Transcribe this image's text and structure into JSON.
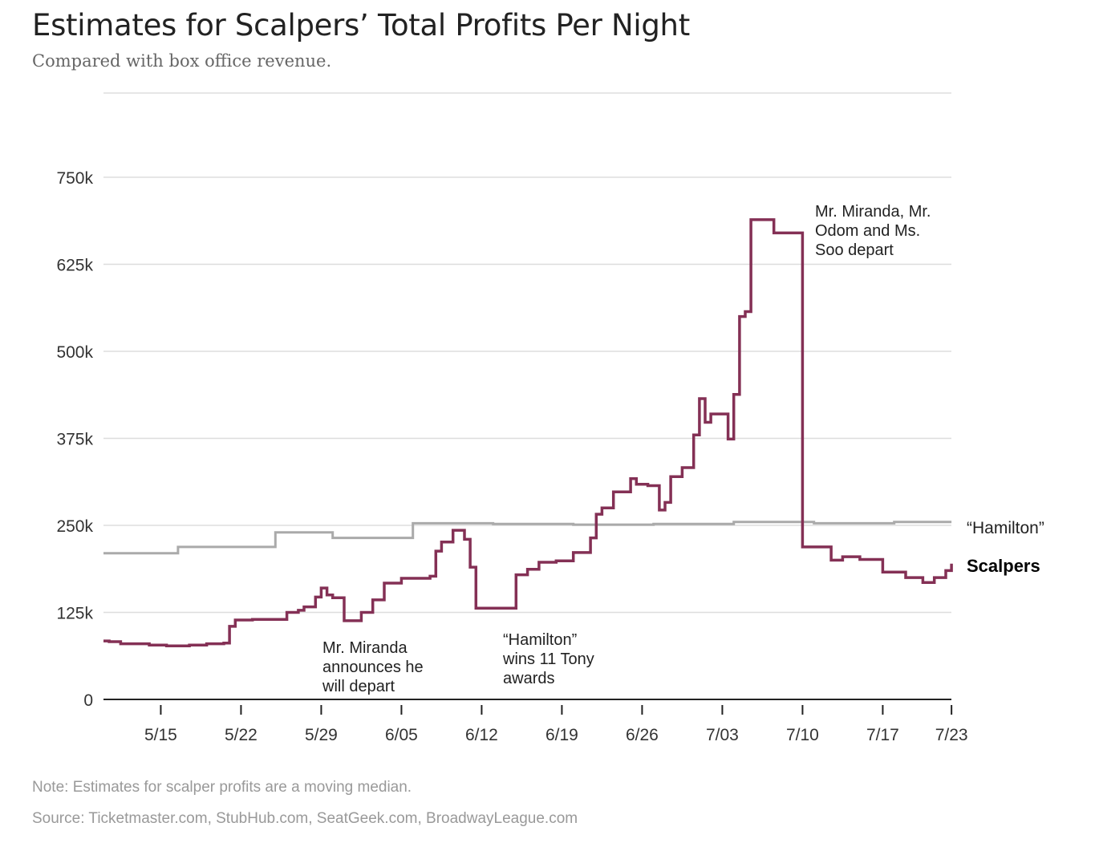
{
  "title": "Estimates for Scalpers’ Total Profits Per Night",
  "subtitle": "Compared with box office revenue.",
  "note": "Note: Estimates for scalper profits are a moving median.",
  "source": "Source: Ticketmaster.com, StubHub.com, SeatGeek.com, BroadwayLeague.com",
  "colors": {
    "scalpers": "#843055",
    "hamilton": "#aaaaaa",
    "grid": "#dddddd",
    "axis": "#222222"
  },
  "chart_data": {
    "type": "line",
    "title": "Estimates for Scalpers’ Total Profits Per Night",
    "subtitle": "Compared with box office revenue.",
    "xlabel": "",
    "ylabel": "",
    "x_range": [
      "2016-05-10",
      "2016-07-23"
    ],
    "ylim": [
      0,
      875000
    ],
    "y_ticks": [
      0,
      125000,
      250000,
      375000,
      500000,
      625000,
      750000
    ],
    "y_tick_labels": [
      "0",
      "125k",
      "250k",
      "375k",
      "500k",
      "625k",
      "750k"
    ],
    "x_ticks": [
      "2016-05-15",
      "2016-05-22",
      "2016-05-29",
      "2016-06-05",
      "2016-06-12",
      "2016-06-19",
      "2016-06-26",
      "2016-07-03",
      "2016-07-10",
      "2016-07-17",
      "2016-07-23"
    ],
    "x_tick_labels": [
      "5/15",
      "5/22",
      "5/29",
      "6/05",
      "6/12",
      "6/19",
      "6/26",
      "7/03",
      "7/10",
      "7/17",
      "7/23"
    ],
    "grid": true,
    "legend": "direct labels at right end of lines",
    "series": [
      {
        "name": "Scalpers",
        "key": "scalpers",
        "step": true,
        "points": [
          [
            "2016-05-10",
            84000
          ],
          [
            "2016-05-10.5",
            83000
          ],
          [
            "2016-05-11.5",
            80000
          ],
          [
            "2016-05-14",
            78000
          ],
          [
            "2016-05-15.5",
            77000
          ],
          [
            "2016-05-17.5",
            78000
          ],
          [
            "2016-05-19",
            80000
          ],
          [
            "2016-05-20.5",
            81000
          ],
          [
            "2016-05-21",
            105000
          ],
          [
            "2016-05-21.5",
            114000
          ],
          [
            "2016-05-23",
            115000
          ],
          [
            "2016-05-26",
            125000
          ],
          [
            "2016-05-27",
            128000
          ],
          [
            "2016-05-27.5",
            133000
          ],
          [
            "2016-05-28.5",
            147000
          ],
          [
            "2016-05-29",
            160000
          ],
          [
            "2016-05-29.5",
            150000
          ],
          [
            "2016-05-30",
            146000
          ],
          [
            "2016-05-31",
            113000
          ],
          [
            "2016-06-01.5",
            125000
          ],
          [
            "2016-06-02.5",
            143000
          ],
          [
            "2016-06-03.5",
            167000
          ],
          [
            "2016-06-05",
            174000
          ],
          [
            "2016-06-07.5",
            177000
          ],
          [
            "2016-06-08",
            213000
          ],
          [
            "2016-06-08.5",
            226000
          ],
          [
            "2016-06-09.5",
            243000
          ],
          [
            "2016-06-10.5",
            230000
          ],
          [
            "2016-06-11",
            190000
          ],
          [
            "2016-06-11.5",
            131000
          ],
          [
            "2016-06-15",
            179000
          ],
          [
            "2016-06-16",
            187000
          ],
          [
            "2016-06-17",
            197000
          ],
          [
            "2016-06-18.5",
            199000
          ],
          [
            "2016-06-20",
            211000
          ],
          [
            "2016-06-21.5",
            232000
          ],
          [
            "2016-06-22",
            266000
          ],
          [
            "2016-06-22.5",
            275000
          ],
          [
            "2016-06-23.5",
            298000
          ],
          [
            "2016-06-25",
            317000
          ],
          [
            "2016-06-25.5",
            309000
          ],
          [
            "2016-06-26.5",
            307000
          ],
          [
            "2016-06-27.5",
            272000
          ],
          [
            "2016-06-28",
            283000
          ],
          [
            "2016-06-28.5",
            320000
          ],
          [
            "2016-06-29.5",
            333000
          ],
          [
            "2016-06-30.5",
            380000
          ],
          [
            "2016-06-31",
            432000
          ],
          [
            "2016-06-31.5",
            398000
          ],
          [
            "2016-07-02",
            410000
          ],
          [
            "2016-07-03.5",
            374000
          ],
          [
            "2016-07-04",
            438000
          ],
          [
            "2016-07-04.5",
            550000
          ],
          [
            "2016-07-05",
            557000
          ],
          [
            "2016-07-05.5",
            689000
          ],
          [
            "2016-07-07.5",
            670000
          ],
          [
            "2016-07-10",
            219000
          ],
          [
            "2016-07-12.5",
            200000
          ],
          [
            "2016-07-13.5",
            205000
          ],
          [
            "2016-07-15",
            201000
          ],
          [
            "2016-07-17",
            183000
          ],
          [
            "2016-07-19",
            175000
          ],
          [
            "2016-07-20.5",
            168000
          ],
          [
            "2016-07-21.5",
            175000
          ],
          [
            "2016-07-22.5",
            185000
          ],
          [
            "2016-07-23",
            195000
          ]
        ]
      },
      {
        "name": "“Hamilton”",
        "key": "hamilton",
        "step": true,
        "points": [
          [
            "2016-05-10",
            210000
          ],
          [
            "2016-05-16.5",
            219000
          ],
          [
            "2016-05-25",
            240000
          ],
          [
            "2016-05-30",
            232000
          ],
          [
            "2016-06-06",
            253000
          ],
          [
            "2016-06-13",
            252000
          ],
          [
            "2016-06-20",
            251000
          ],
          [
            "2016-06-27",
            252000
          ],
          [
            "2016-07-04",
            255000
          ],
          [
            "2016-07-11",
            253000
          ],
          [
            "2016-07-18",
            255000
          ],
          [
            "2016-07-23",
            255000
          ]
        ]
      }
    ],
    "annotations": [
      {
        "id": "miranda-announce",
        "x": "2016-05-29",
        "lines": [
          "Mr. Miranda",
          "announces he",
          "will depart"
        ]
      },
      {
        "id": "tony-awards",
        "x": "2016-06-14",
        "lines": [
          "“Hamilton”",
          "wins 11 Tony",
          "awards"
        ]
      },
      {
        "id": "depart",
        "x": "2016-07-10",
        "lines": [
          "Mr. Miranda, Mr.",
          "Odom and Ms.",
          "Soo depart"
        ]
      }
    ],
    "end_labels": {
      "hamilton": "“Hamilton”",
      "scalpers": "Scalpers"
    }
  }
}
